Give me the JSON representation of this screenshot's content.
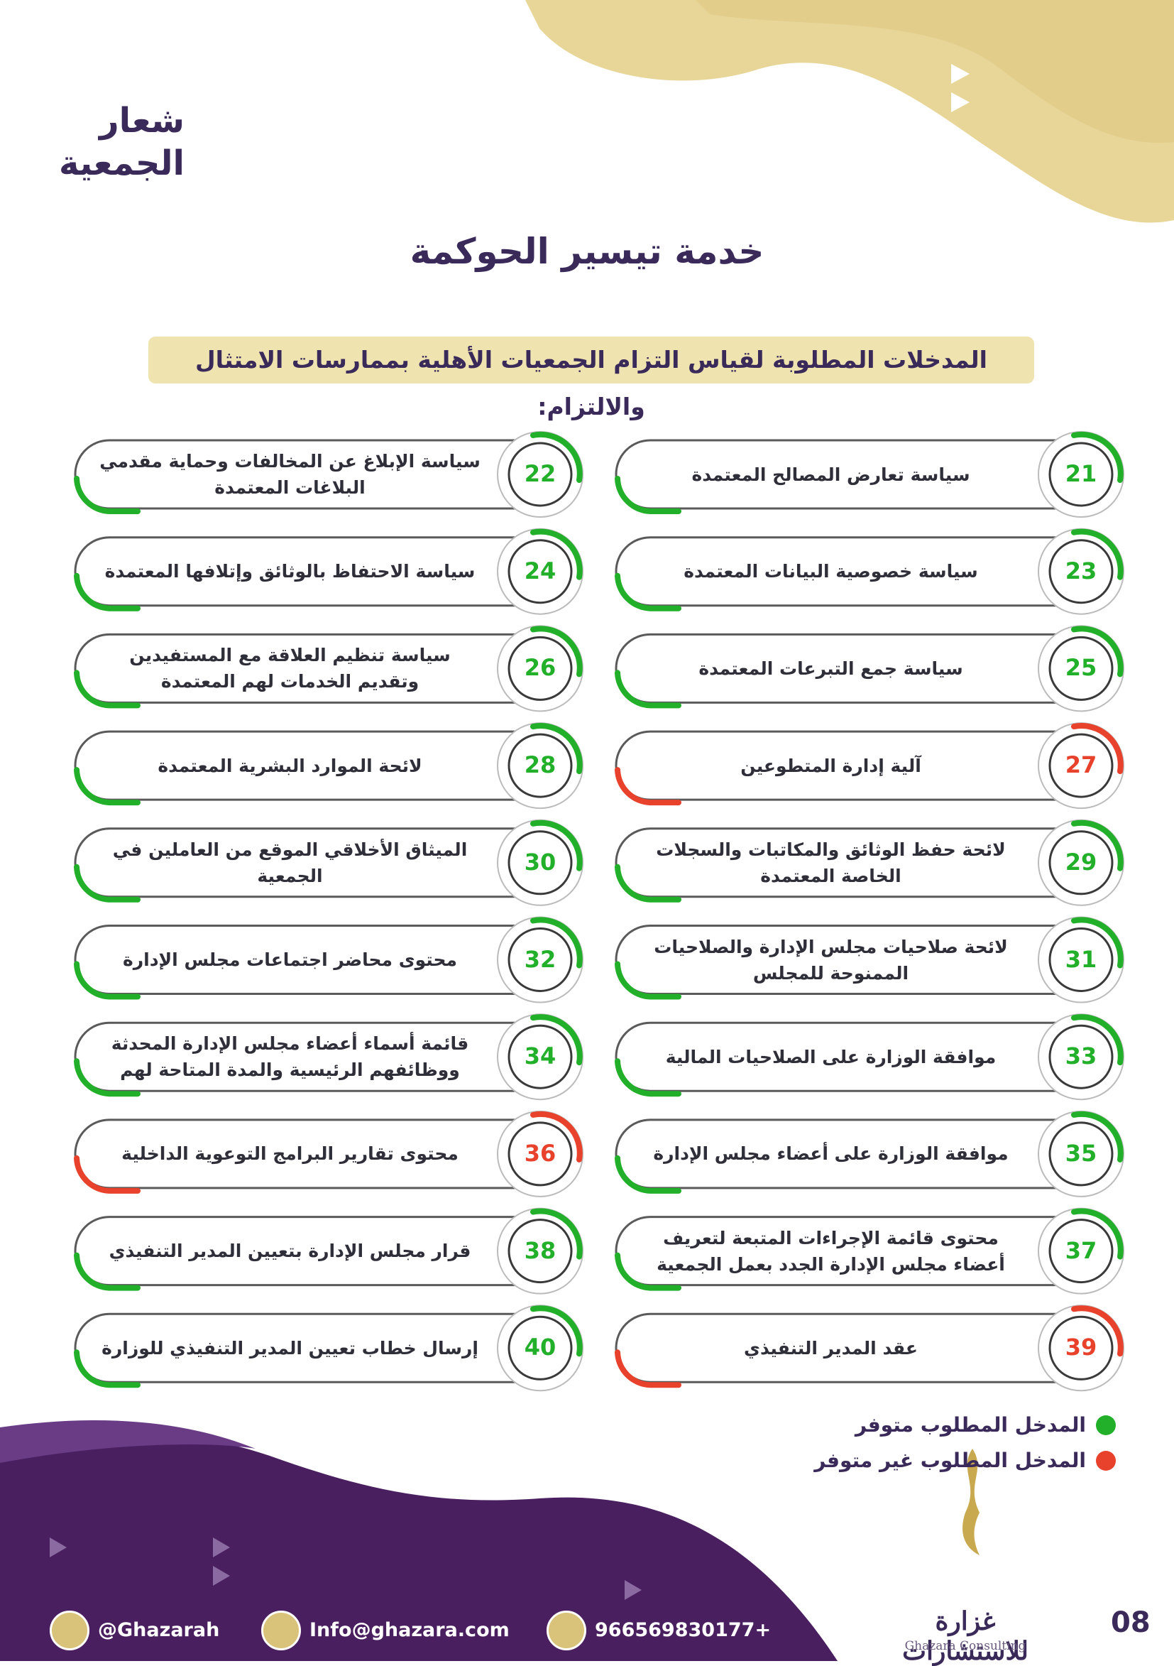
{
  "logo": [
    "شعار",
    "الجمعية"
  ],
  "title": "خدمة تيسير الحوكمة",
  "subtitle": "المدخلات المطلوبة لقياس التزام الجمعيات الأهلية بممارسات الامتثال والالتزام:",
  "items": [
    {
      "number": "21",
      "text": "سياسة تعارض المصالح المعتمدة",
      "color": "#22b02a"
    },
    {
      "number": "22",
      "text": "سياسة الإبلاغ عن المخالفات وحماية مقدمي البلاغات المعتمدة",
      "color": "#22b02a"
    },
    {
      "number": "23",
      "text": "سياسة خصوصية البيانات المعتمدة",
      "color": "#22b02a"
    },
    {
      "number": "24",
      "text": "سياسة الاحتفاظ بالوثائق وإتلافها المعتمدة",
      "color": "#22b02a"
    },
    {
      "number": "25",
      "text": "سياسة جمع التبرعات المعتمدة",
      "color": "#22b02a"
    },
    {
      "number": "26",
      "text": "سياسة تنظيم العلاقة مع المستفيدين وتقديم الخدمات لهم المعتمدة",
      "color": "#22b02a"
    },
    {
      "number": "27",
      "text": "آلية إدارة المتطوعين",
      "color": "#e8412c"
    },
    {
      "number": "28",
      "text": "لائحة الموارد البشرية المعتمدة",
      "color": "#22b02a"
    },
    {
      "number": "29",
      "text": "لائحة حفظ الوثائق والمكاتبات والسجلات الخاصة المعتمدة",
      "color": "#22b02a"
    },
    {
      "number": "30",
      "text": "الميثاق الأخلاقي الموقع من العاملين في الجمعية",
      "color": "#22b02a"
    },
    {
      "number": "31",
      "text": "لائحة صلاحيات مجلس الإدارة والصلاحيات الممنوحة للمجلس",
      "color": "#22b02a"
    },
    {
      "number": "32",
      "text": "محتوى محاضر اجتماعات مجلس الإدارة",
      "color": "#22b02a"
    },
    {
      "number": "33",
      "text": "موافقة الوزارة على الصلاحيات المالية",
      "color": "#22b02a"
    },
    {
      "number": "34",
      "text": "قائمة أسماء أعضاء مجلس الإدارة المحدثة ووظائفهم الرئيسية والمدة المتاحة لهم",
      "color": "#22b02a"
    },
    {
      "number": "35",
      "text": "موافقة الوزارة على أعضاء مجلس الإدارة",
      "color": "#22b02a"
    },
    {
      "number": "36",
      "text": "محتوى تقارير البرامج التوعوية الداخلية",
      "color": "#e8412c"
    },
    {
      "number": "37",
      "text": "محتوى قائمة الإجراءات المتبعة لتعريف أعضاء مجلس الإدارة الجدد بعمل الجمعية",
      "color": "#22b02a"
    },
    {
      "number": "38",
      "text": "قرار مجلس الإدارة بتعيين المدير التنفيذي",
      "color": "#22b02a"
    },
    {
      "number": "39",
      "text": "عقد المدير التنفيذي",
      "color": "#e8412c"
    },
    {
      "number": "40",
      "text": "إرسال خطاب تعيين المدير التنفيذي للوزارة",
      "color": "#22b02a"
    }
  ],
  "legend": [
    {
      "label": "المدخل المطلوب متوفر",
      "color": "#22b02a"
    },
    {
      "label": "المدخل المطلوب غير متوفر",
      "color": "#e8412c"
    }
  ],
  "footer": {
    "twitter": "@Ghazarah",
    "email": "Info@ghazara.com",
    "phone": "966569830177+",
    "brand": "غزارة للاستشارات",
    "brand_en": "Ghazara Consulting",
    "page": "08"
  }
}
